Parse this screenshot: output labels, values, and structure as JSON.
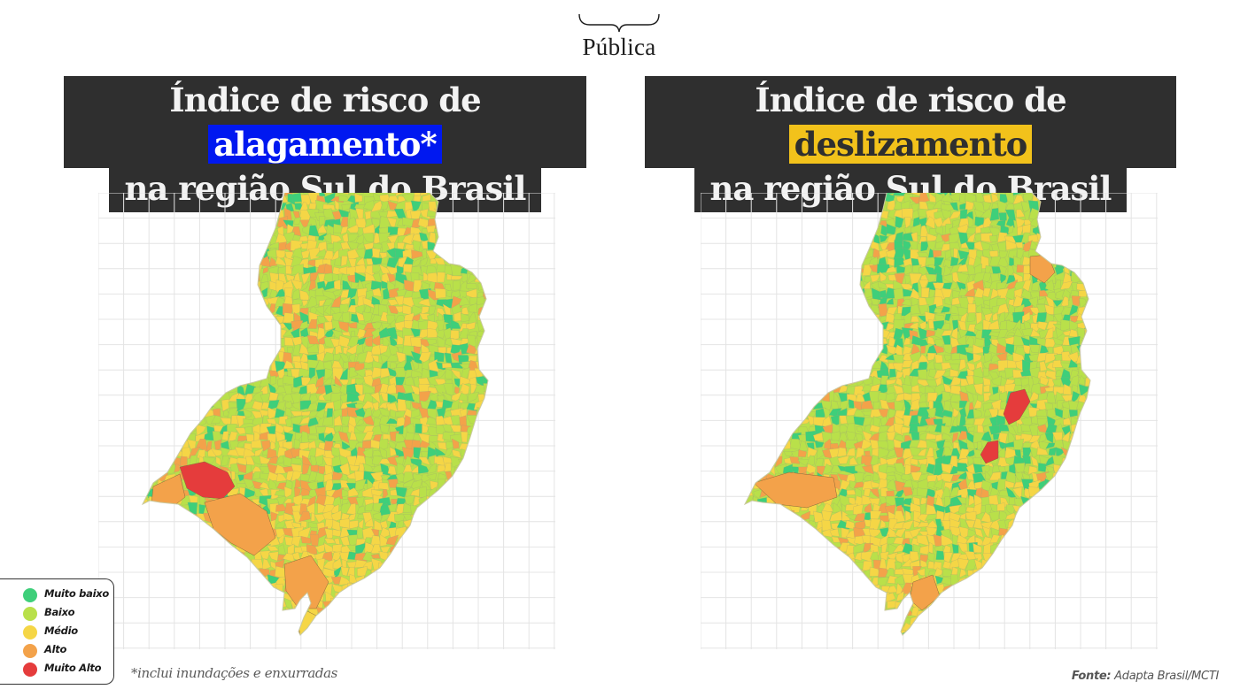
{
  "brand": {
    "name": "Pública"
  },
  "left_title": {
    "line1_prefix": "Índice de risco de ",
    "line1_highlight": "alagamento*",
    "line2": "na região Sul do Brasil"
  },
  "right_title": {
    "line1_prefix": "Índice de risco de ",
    "line1_highlight": "deslizamento",
    "line2": "na região Sul do Brasil"
  },
  "legend": [
    {
      "label": "Muito baixo",
      "color": "#3ecf7a"
    },
    {
      "label": "Baixo",
      "color": "#b9e04a"
    },
    {
      "label": "Médio",
      "color": "#f5d646"
    },
    {
      "label": "Alto",
      "color": "#f3a24a"
    },
    {
      "label": "Muito Alto",
      "color": "#e53c3c"
    }
  ],
  "footnote": "*inclui inundações e enxurradas",
  "source": {
    "label": "Fonte:",
    "value": "Adapta Brasil/MCTI"
  },
  "colors": {
    "title_bg": "#2f2f2f",
    "highlight_blue": "#0018f0",
    "highlight_yellow": "#f2c21b"
  }
}
